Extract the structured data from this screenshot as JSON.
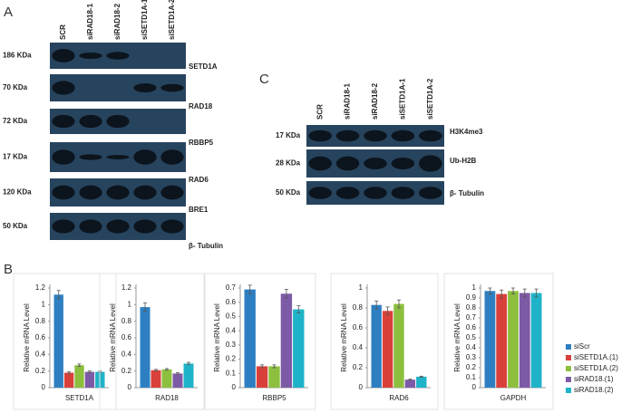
{
  "panels": {
    "a": "A",
    "b": "B",
    "c": "C"
  },
  "blot_a": {
    "lanes": [
      "SCR",
      "siRAD18-1",
      "siRAD18-2",
      "siSETD1A-1",
      "siSETD1A-2"
    ],
    "rows": [
      {
        "mass": "186 KDa",
        "protein": "SETD1A"
      },
      {
        "mass": "70 KDa",
        "protein": "RAD18"
      },
      {
        "mass": "72 KDa",
        "protein": "RBBP5"
      },
      {
        "mass": "17 KDa",
        "protein": "RAD6"
      },
      {
        "mass": "120 KDa",
        "protein": "BRE1"
      },
      {
        "mass": "50 KDa",
        "protein": "β- Tubulin"
      }
    ]
  },
  "blot_c": {
    "lanes": [
      "SCR",
      "siRAD18-1",
      "siRAD18-2",
      "siSETD1A-1",
      "siSETD1A-2"
    ],
    "rows": [
      {
        "mass": "17 KDa",
        "protein": "H3K4me3"
      },
      {
        "mass": "28 KDa",
        "protein": "Ub-H2B"
      },
      {
        "mass": "50 KDa",
        "protein": "β- Tubulin"
      }
    ]
  },
  "legend": [
    {
      "name": "siScr",
      "color": "#2e7fc2"
    },
    {
      "name": "siSETD1A.(1)",
      "color": "#d9403a"
    },
    {
      "name": "siSETD1A.(2)",
      "color": "#8dbf3f"
    },
    {
      "name": "siRAD18.(1)",
      "color": "#7d5aa6"
    },
    {
      "name": "siRAD18.(2)",
      "color": "#1fb3c9"
    }
  ],
  "chart_data": [
    {
      "type": "bar",
      "categories": [
        "SETD1A"
      ],
      "ylabel": "Relative mRNA Level",
      "ylim": [
        0,
        1.2
      ],
      "yticks": [
        0,
        0.2,
        0.4,
        0.6,
        0.8,
        1,
        1.2
      ],
      "series": [
        {
          "values": [
            1.12
          ],
          "errors": [
            0.05
          ]
        },
        {
          "values": [
            0.18
          ],
          "errors": [
            0.01
          ]
        },
        {
          "values": [
            0.27
          ],
          "errors": [
            0.015
          ]
        },
        {
          "values": [
            0.19
          ],
          "errors": [
            0.01
          ]
        },
        {
          "values": [
            0.19
          ],
          "errors": [
            0.01
          ]
        }
      ]
    },
    {
      "type": "bar",
      "categories": [
        "RAD18"
      ],
      "ylabel": "Relative mRNA Level",
      "ylim": [
        0,
        1.2
      ],
      "yticks": [
        0,
        0.2,
        0.4,
        0.6,
        0.8,
        1,
        1.2
      ],
      "series": [
        {
          "values": [
            0.97
          ],
          "errors": [
            0.05
          ]
        },
        {
          "values": [
            0.21
          ],
          "errors": [
            0.01
          ]
        },
        {
          "values": [
            0.22
          ],
          "errors": [
            0.01
          ]
        },
        {
          "values": [
            0.17
          ],
          "errors": [
            0.01
          ]
        },
        {
          "values": [
            0.29
          ],
          "errors": [
            0.015
          ]
        }
      ]
    },
    {
      "type": "bar",
      "categories": [
        "RBBP5"
      ],
      "ylabel": "Relative mRNA Level",
      "ylim": [
        0,
        0.7
      ],
      "yticks": [
        0,
        0.1,
        0.2,
        0.3,
        0.4,
        0.5,
        0.6,
        0.7
      ],
      "series": [
        {
          "values": [
            0.69
          ],
          "errors": [
            0.03
          ]
        },
        {
          "values": [
            0.15
          ],
          "errors": [
            0.01
          ]
        },
        {
          "values": [
            0.15
          ],
          "errors": [
            0.01
          ]
        },
        {
          "values": [
            0.66
          ],
          "errors": [
            0.03
          ]
        },
        {
          "values": [
            0.55
          ],
          "errors": [
            0.025
          ]
        }
      ]
    },
    {
      "type": "bar",
      "categories": [
        "RAD6"
      ],
      "ylabel": "Relative mRNA Level",
      "ylim": [
        0,
        1
      ],
      "yticks": [
        0,
        0.2,
        0.4,
        0.6,
        0.8,
        1
      ],
      "series": [
        {
          "values": [
            0.83
          ],
          "errors": [
            0.04
          ]
        },
        {
          "values": [
            0.77
          ],
          "errors": [
            0.04
          ]
        },
        {
          "values": [
            0.84
          ],
          "errors": [
            0.04
          ]
        },
        {
          "values": [
            0.08
          ],
          "errors": [
            0.005
          ]
        },
        {
          "values": [
            0.11
          ],
          "errors": [
            0.005
          ]
        }
      ]
    },
    {
      "type": "bar",
      "categories": [
        "GAPDH"
      ],
      "ylabel": "Relative mRNA Level",
      "ylim": [
        0,
        1
      ],
      "yticks": [
        0,
        0.1,
        0.2,
        0.3,
        0.4,
        0.5,
        0.6,
        0.7,
        0.8,
        0.9,
        1
      ],
      "series": [
        {
          "values": [
            0.97
          ],
          "errors": [
            0.03
          ]
        },
        {
          "values": [
            0.94
          ],
          "errors": [
            0.04
          ]
        },
        {
          "values": [
            0.97
          ],
          "errors": [
            0.03
          ]
        },
        {
          "values": [
            0.95
          ],
          "errors": [
            0.04
          ]
        },
        {
          "values": [
            0.95
          ],
          "errors": [
            0.04
          ]
        }
      ]
    }
  ]
}
